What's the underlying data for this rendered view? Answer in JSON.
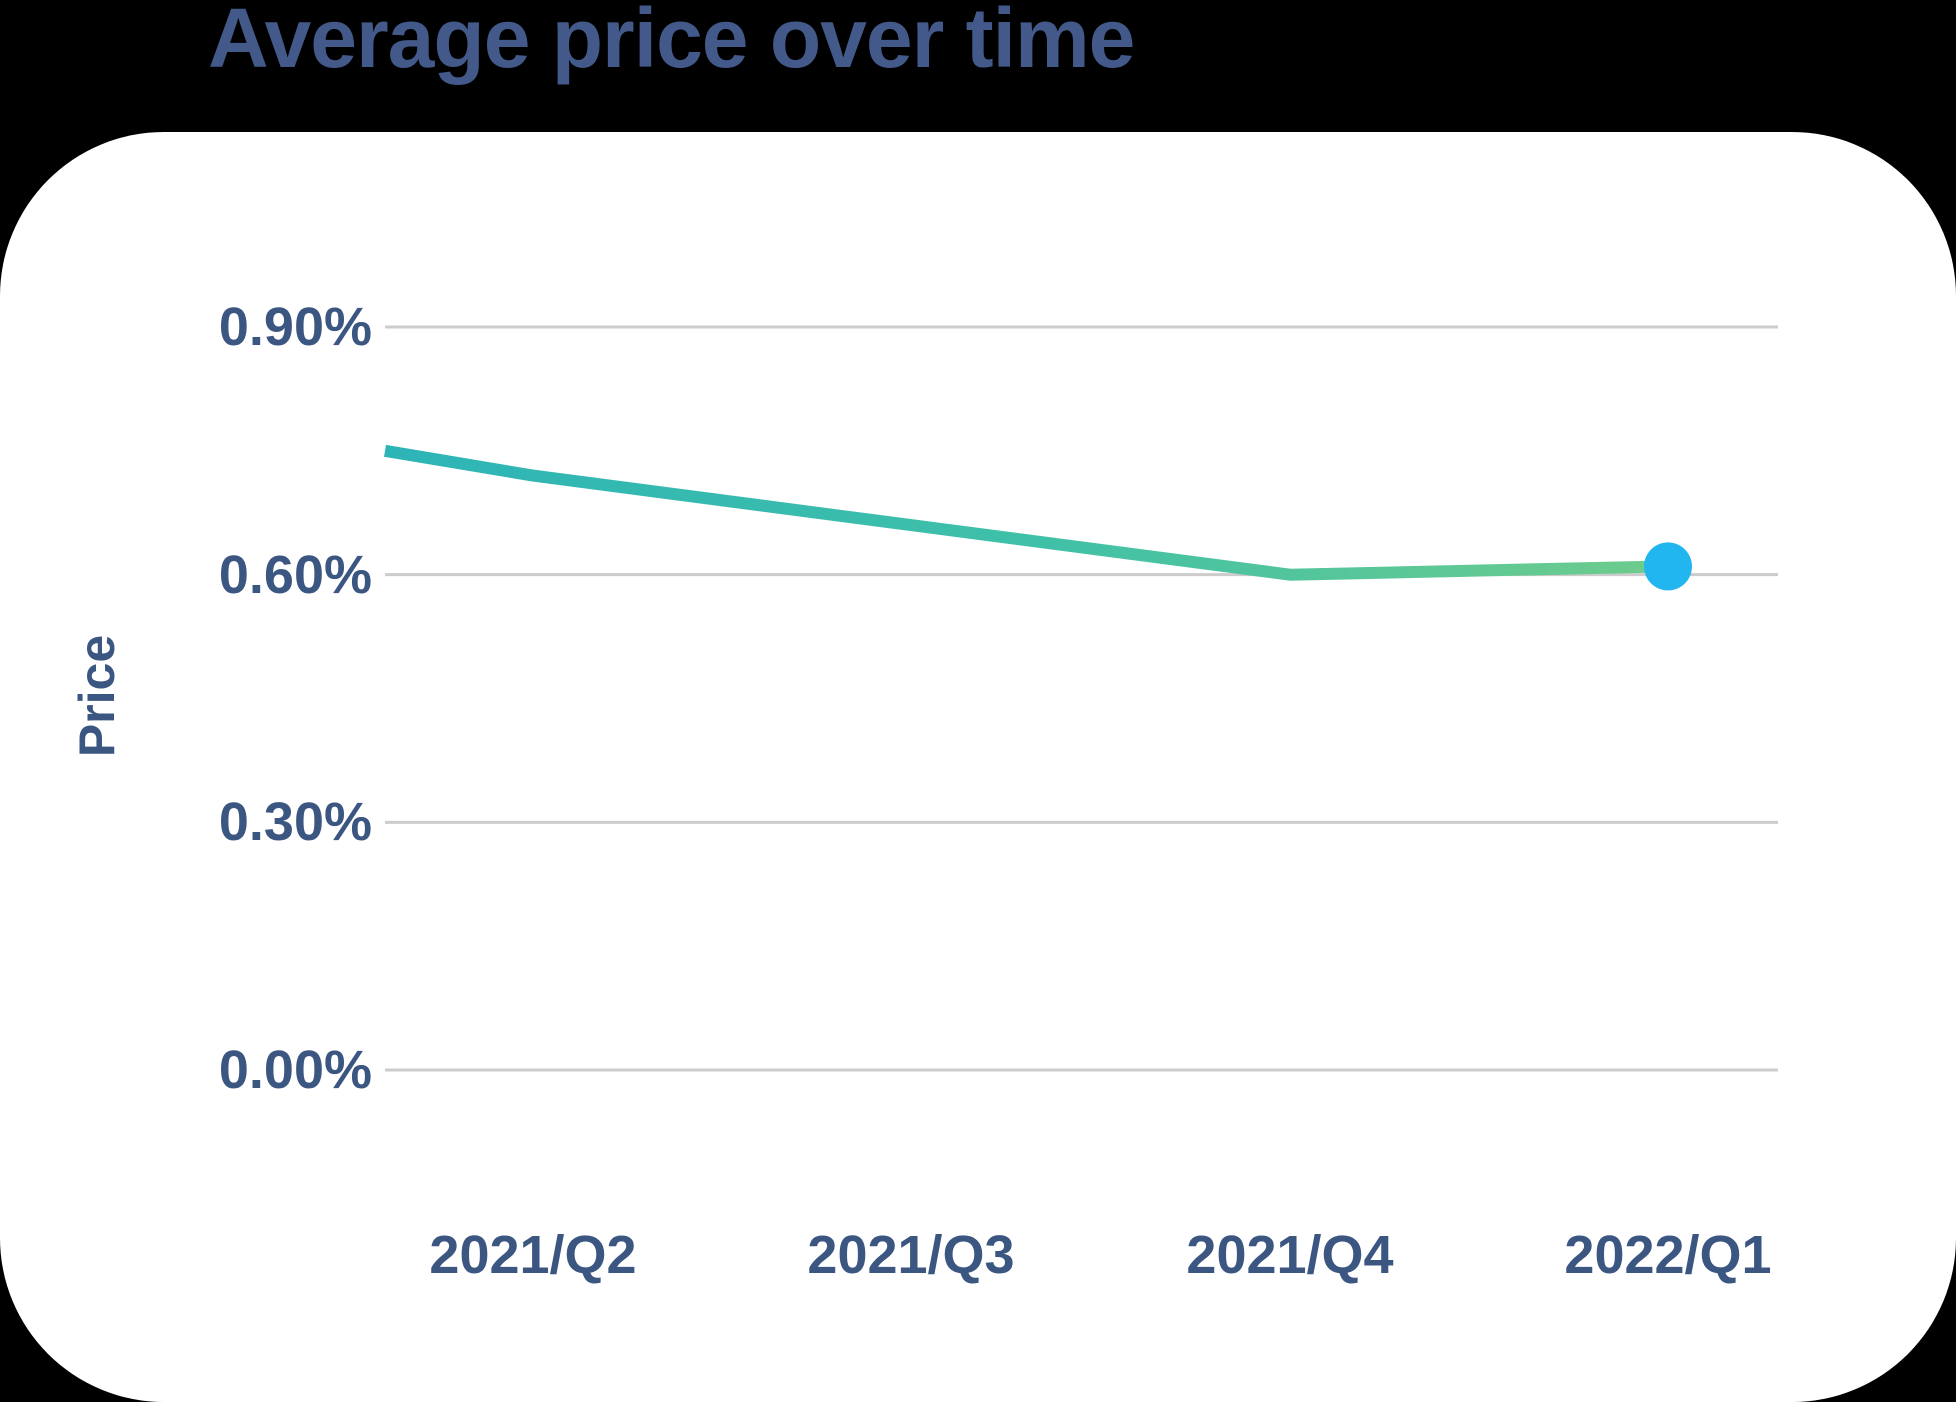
{
  "page": {
    "background_color": "#000000",
    "card_background_color": "#ffffff"
  },
  "chart_data": {
    "type": "line",
    "title": "Average price over time",
    "ylabel": "Price",
    "xlabel": "",
    "categories": [
      "2021/Q2",
      "2021/Q3",
      "2021/Q4",
      "2022/Q1"
    ],
    "values": [
      0.72,
      0.66,
      0.6,
      0.61
    ],
    "edge_start_value": 0.75,
    "y_ticks": [
      {
        "label": "0.90%",
        "value": 0.9
      },
      {
        "label": "0.60%",
        "value": 0.6
      },
      {
        "label": "0.30%",
        "value": 0.3
      },
      {
        "label": "0.00%",
        "value": 0.0
      }
    ],
    "ylim": [
      0,
      0.9
    ],
    "grid": "horizontal",
    "legend": "none",
    "marker": "last-point-only",
    "colors": {
      "title_text": "#42598a",
      "axis_text": "#3c5682",
      "gridline": "#cccccc",
      "line_gradient_start": "#2db4b7",
      "line_gradient_mid": "#3fc0a8",
      "line_gradient_end": "#6ecc8c",
      "marker_fill": "#22b6f0"
    }
  }
}
